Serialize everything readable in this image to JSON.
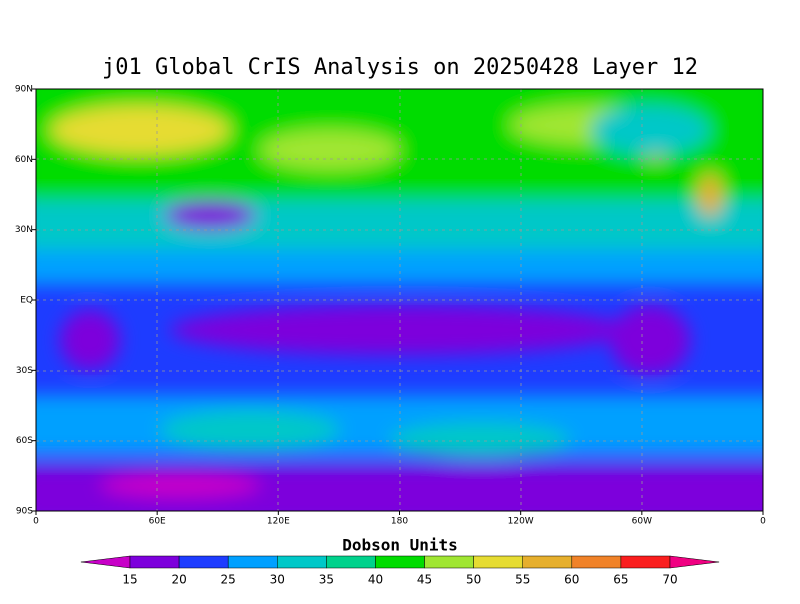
{
  "title": "j01 Global CrIS Analysis on 20250428 Layer 12",
  "lon_labels": [
    "0",
    "60E",
    "120E",
    "180",
    "120W",
    "60W",
    "0"
  ],
  "lat_labels": [
    "90N",
    "60N",
    "30N",
    "EQ",
    "30S",
    "60S",
    "90S"
  ],
  "colorbar": {
    "title": "Dobson Units",
    "levels": [
      15,
      20,
      25,
      30,
      35,
      40,
      45,
      50,
      55,
      60,
      65,
      70
    ],
    "colors": [
      "#c800c8",
      "#7d00dc",
      "#1e3cff",
      "#00a0ff",
      "#00c8c8",
      "#00d28c",
      "#00dc00",
      "#a0e632",
      "#e6dc32",
      "#e6af2d",
      "#f08228",
      "#fa1e1e",
      "#f00082"
    ]
  }
}
